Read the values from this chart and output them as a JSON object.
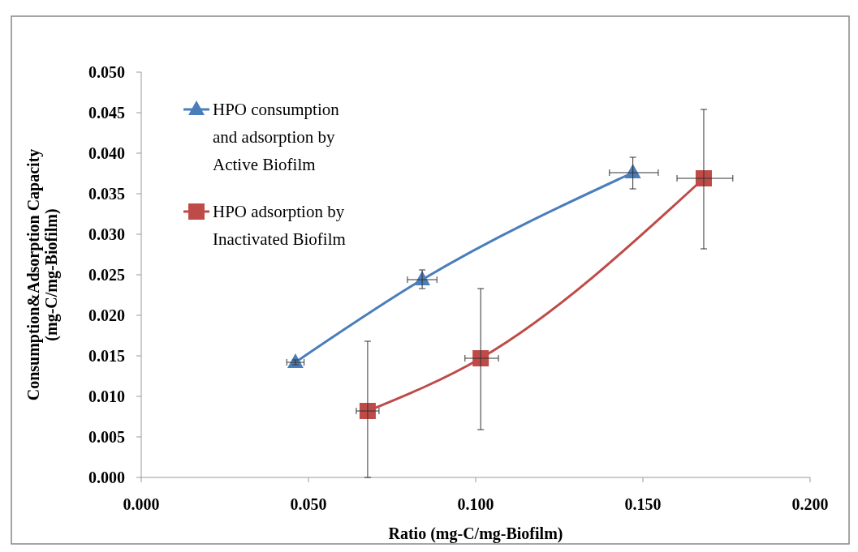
{
  "chart_data": {
    "type": "line",
    "xlabel": "Ratio (mg-C/mg-Biofilm)",
    "ylabel": "Consumption&Adsorption  Capacity\n(mg-C/mg-Biofilm)",
    "xlim": [
      0,
      0.2
    ],
    "xticks": [
      {
        "value": 0,
        "label": "0.000"
      },
      {
        "value": 0.05,
        "label": "0.050"
      },
      {
        "value": 0.1,
        "label": "0.100"
      },
      {
        "value": 0.15,
        "label": "0.150"
      },
      {
        "value": 0.2,
        "label": "0.200"
      }
    ],
    "ylim": [
      0,
      0.05
    ],
    "yticks": [
      {
        "value": 0,
        "label": "0.000"
      },
      {
        "value": 0.005,
        "label": "0.005"
      },
      {
        "value": 0.01,
        "label": "0.010"
      },
      {
        "value": 0.015,
        "label": "0.015"
      },
      {
        "value": 0.02,
        "label": "0.020"
      },
      {
        "value": 0.025,
        "label": "0.025"
      },
      {
        "value": 0.03,
        "label": "0.030"
      },
      {
        "value": 0.035,
        "label": "0.035"
      },
      {
        "value": 0.04,
        "label": "0.040"
      },
      {
        "value": 0.045,
        "label": "0.045"
      },
      {
        "value": 0.05,
        "label": "0.050"
      }
    ],
    "grid": false,
    "legend": "top left",
    "series": [
      {
        "name": "HPO consumption and adsorption by Active Biofilm",
        "color": "#4a7ebb",
        "marker": "triangle",
        "x": [
          0.0461,
          0.084,
          0.147
        ],
        "values": [
          0.0142,
          0.0244,
          0.0376
        ],
        "errors": [
          [
            0.0139,
            0.0145
          ],
          [
            0.0233,
            0.0256
          ],
          [
            0.0356,
            0.0395
          ]
        ],
        "xerrors": [
          [
            0.0435,
            0.0487
          ],
          [
            0.0796,
            0.0884
          ],
          [
            0.14,
            0.1546
          ]
        ]
      },
      {
        "name": "HPO adsorption by Inactivated Biofilm",
        "color": "#be4b48",
        "marker": "square",
        "x": [
          0.0677,
          0.1015,
          0.1682
        ],
        "values": [
          0.0082,
          0.0147,
          0.0369
        ],
        "errors": [
          [
            0,
            0.0168
          ],
          [
            0.0059,
            0.0233
          ],
          [
            0.0282,
            0.0454
          ]
        ],
        "xerrors": [
          [
            0.0643,
            0.0711
          ],
          [
            0.0968,
            0.1068
          ],
          [
            0.1602,
            0.1769
          ]
        ]
      }
    ]
  }
}
